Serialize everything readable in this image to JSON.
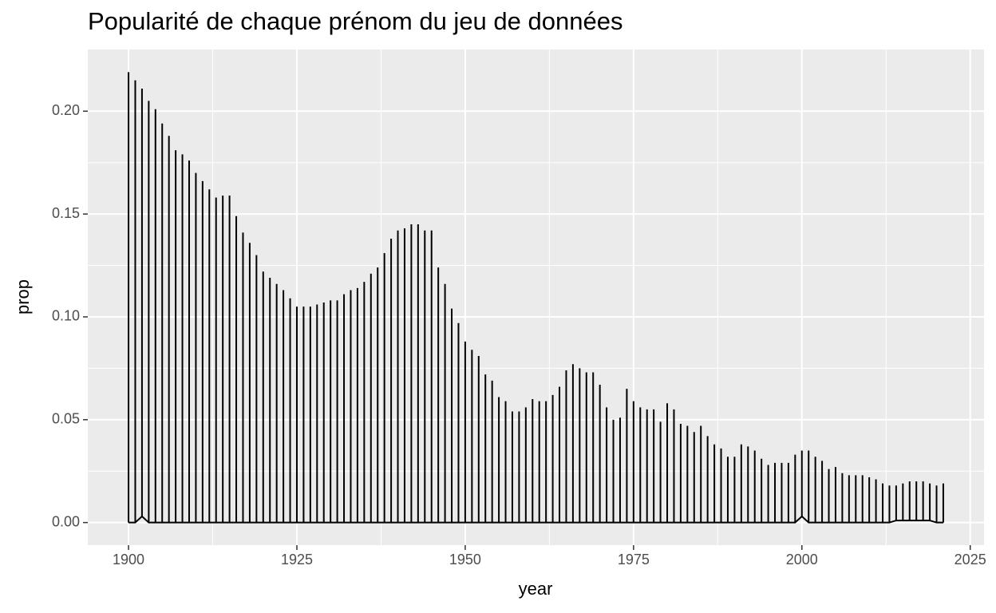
{
  "chart_data": {
    "type": "line",
    "title": "Popularité de chaque prénom du jeu de données",
    "x_label": "year",
    "y_label": "prop",
    "x": [
      1900,
      1901,
      1902,
      1903,
      1904,
      1905,
      1906,
      1907,
      1908,
      1909,
      1910,
      1911,
      1912,
      1913,
      1914,
      1915,
      1916,
      1917,
      1918,
      1919,
      1920,
      1921,
      1922,
      1923,
      1924,
      1925,
      1926,
      1927,
      1928,
      1929,
      1930,
      1931,
      1932,
      1933,
      1934,
      1935,
      1936,
      1937,
      1938,
      1939,
      1940,
      1941,
      1942,
      1943,
      1944,
      1945,
      1946,
      1947,
      1948,
      1949,
      1950,
      1951,
      1952,
      1953,
      1954,
      1955,
      1956,
      1957,
      1958,
      1959,
      1960,
      1961,
      1962,
      1963,
      1964,
      1965,
      1966,
      1967,
      1968,
      1969,
      1970,
      1971,
      1972,
      1973,
      1974,
      1975,
      1976,
      1977,
      1978,
      1979,
      1980,
      1981,
      1982,
      1983,
      1984,
      1985,
      1986,
      1987,
      1988,
      1989,
      1990,
      1991,
      1992,
      1993,
      1994,
      1995,
      1996,
      1997,
      1998,
      1999,
      2000,
      2001,
      2002,
      2003,
      2004,
      2005,
      2006,
      2007,
      2008,
      2009,
      2010,
      2011,
      2012,
      2013,
      2014,
      2015,
      2016,
      2017,
      2018,
      2019,
      2020,
      2021
    ],
    "series": [
      {
        "color": "#000000",
        "values": [
          0.219,
          0.215,
          0.211,
          0.205,
          0.201,
          0.194,
          0.188,
          0.181,
          0.179,
          0.176,
          0.17,
          0.166,
          0.162,
          0.158,
          0.159,
          0.159,
          0.149,
          0.141,
          0.136,
          0.13,
          0.122,
          0.119,
          0.116,
          0.113,
          0.109,
          0.105,
          0.105,
          0.105,
          0.106,
          0.107,
          0.108,
          0.108,
          0.111,
          0.113,
          0.114,
          0.117,
          0.121,
          0.124,
          0.131,
          0.138,
          0.142,
          0.143,
          0.145,
          0.145,
          0.142,
          0.142,
          0.124,
          0.116,
          0.104,
          0.097,
          0.088,
          0.084,
          0.081,
          0.072,
          0.069,
          0.061,
          0.059,
          0.054,
          0.054,
          0.056,
          0.06,
          0.059,
          0.059,
          0.062,
          0.066,
          0.074,
          0.077,
          0.075,
          0.073,
          0.073,
          0.067,
          0.056,
          0.05,
          0.051,
          0.065,
          0.059,
          0.056,
          0.055,
          0.055,
          0.049,
          0.058,
          0.055,
          0.048,
          0.047,
          0.044,
          0.047,
          0.042,
          0.038,
          0.036,
          0.032,
          0.032,
          0.038,
          0.037,
          0.035,
          0.031,
          0.028,
          0.029,
          0.029,
          0.029,
          0.033,
          0.035,
          0.035,
          0.032,
          0.03,
          0.026,
          0.027,
          0.024,
          0.023,
          0.023,
          0.023,
          0.022,
          0.021,
          0.019,
          0.018,
          0.018,
          0.019,
          0.02,
          0.02,
          0.02,
          0.019,
          0.018,
          0.019
        ]
      },
      {
        "color": "#000000",
        "values": [
          0,
          0,
          0.003,
          0,
          0,
          0,
          0,
          0,
          0,
          0,
          0,
          0,
          0,
          0,
          0,
          0,
          0,
          0,
          0,
          0,
          0,
          0,
          0,
          0,
          0,
          0,
          0,
          0,
          0,
          0,
          0,
          0,
          0,
          0,
          0,
          0,
          0,
          0,
          0,
          0,
          0,
          0,
          0,
          0,
          0,
          0,
          0,
          0,
          0,
          0,
          0,
          0,
          0,
          0,
          0,
          0,
          0,
          0,
          0,
          0,
          0,
          0,
          0,
          0,
          0,
          0,
          0,
          0,
          0,
          0,
          0,
          0,
          0,
          0,
          0,
          0,
          0,
          0,
          0,
          0,
          0,
          0,
          0,
          0,
          0,
          0,
          0,
          0,
          0,
          0,
          0,
          0,
          0,
          0,
          0,
          0,
          0,
          0,
          0,
          0,
          0.003,
          0,
          0,
          0,
          0,
          0,
          0,
          0,
          0,
          0,
          0,
          0,
          0,
          0,
          0.001,
          0.001,
          0.001,
          0.001,
          0.001,
          0.001,
          0,
          0
        ]
      }
    ],
    "xlim": [
      1893.95,
      2027.05
    ],
    "xticks": [
      1900,
      1925,
      1950,
      1975,
      2000,
      2025
    ],
    "ylim": [
      -0.011,
      0.23
    ],
    "yticks": [
      {
        "value": 0,
        "label": "0.00"
      },
      {
        "value": 0.05,
        "label": "0.05"
      },
      {
        "value": 0.1,
        "label": "0.10"
      },
      {
        "value": 0.15,
        "label": "0.15"
      },
      {
        "value": 0.2,
        "label": "0.20"
      }
    ],
    "grid": true
  }
}
